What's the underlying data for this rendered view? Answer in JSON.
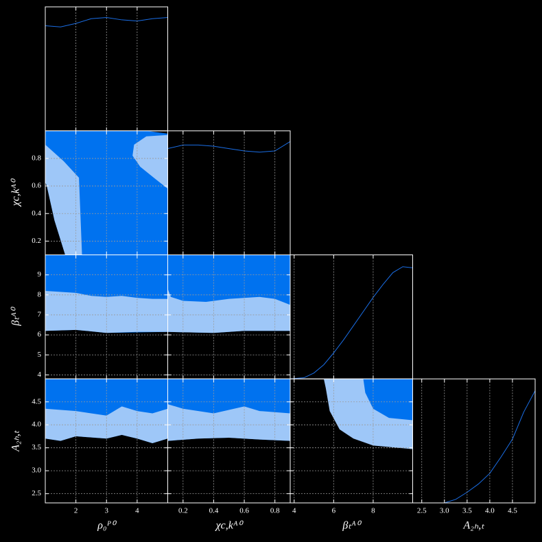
{
  "chart_data": [
    {
      "type": "line",
      "color": "#1a6ee6",
      "x": [
        1,
        1.5,
        2,
        2.5,
        3,
        3.5,
        4,
        4.5,
        5
      ],
      "values": [
        0.89,
        0.88,
        0.91,
        0.95,
        0.96,
        0.94,
        0.93,
        0.95,
        0.96
      ],
      "xlim": [
        1,
        5
      ],
      "ylim": [
        0,
        1.05
      ],
      "xticks": [
        2,
        3,
        4
      ],
      "grid": true
    },
    {
      "type": "contour",
      "xlim": [
        1,
        5
      ],
      "ylim": [
        0.1,
        1.0
      ],
      "xticks": [
        2,
        3,
        4
      ],
      "yticks": [
        0.2,
        0.4,
        0.6,
        0.8
      ],
      "ylabel": "χc,kᴬ⁰",
      "grid": true,
      "series": [
        {
          "color": "#0072ef",
          "x": [
            1,
            4.3,
            5,
            5,
            1.65,
            1.3,
            1.05,
            1
          ],
          "y": [
            1.0,
            1.0,
            0.98,
            0.1,
            0.1,
            0.35,
            0.6,
            0.63
          ]
        },
        {
          "color": "#9ec7f8",
          "x": [
            1,
            1.6,
            2.1,
            2.2,
            1.65,
            1.3,
            1.05,
            1
          ],
          "y": [
            0.9,
            0.78,
            0.66,
            0.1,
            0.1,
            0.35,
            0.6,
            0.63
          ]
        },
        {
          "color": "#9ec7f8",
          "x": [
            5,
            4.3,
            3.9,
            3.85,
            4.1,
            4.6,
            5
          ],
          "y": [
            0.97,
            0.96,
            0.9,
            0.82,
            0.74,
            0.65,
            0.58
          ]
        }
      ]
    },
    {
      "type": "line",
      "color": "#1a6ee6",
      "x": [
        0.1,
        0.2,
        0.3,
        0.4,
        0.5,
        0.6,
        0.7,
        0.8,
        0.9
      ],
      "values": [
        0.9,
        0.93,
        0.93,
        0.92,
        0.9,
        0.88,
        0.87,
        0.88,
        0.96
      ],
      "xlim": [
        0.1,
        0.9
      ],
      "ylim": [
        0,
        1.05
      ],
      "xticks": [
        0.2,
        0.4,
        0.6,
        0.8
      ],
      "grid": true
    },
    {
      "type": "contour",
      "xlim": [
        1,
        5
      ],
      "ylim": [
        3.8,
        10
      ],
      "xticks": [
        2,
        3,
        4
      ],
      "yticks": [
        4,
        5,
        6,
        7,
        8,
        9
      ],
      "ylabel": "βₜᴬ⁰",
      "grid": true,
      "series": [
        {
          "color": "#0072ef",
          "x": [
            1,
            5,
            5,
            3,
            2,
            1
          ],
          "y": [
            10,
            10,
            6.15,
            6.1,
            6.25,
            6.2
          ]
        },
        {
          "color": "#9ec7f8",
          "x": [
            1,
            2,
            2.5,
            3,
            3.5,
            4,
            4.5,
            5,
            5,
            4,
            3,
            2,
            1
          ],
          "y": [
            8.2,
            8.1,
            7.95,
            7.9,
            7.95,
            7.85,
            7.8,
            7.8,
            6.15,
            6.15,
            6.1,
            6.25,
            6.2
          ]
        }
      ]
    },
    {
      "type": "contour",
      "xlim": [
        0.1,
        0.9
      ],
      "ylim": [
        3.8,
        10
      ],
      "xticks": [
        0.2,
        0.4,
        0.6,
        0.8
      ],
      "yticks": [
        4,
        5,
        6,
        7,
        8,
        9
      ],
      "grid": true,
      "series": [
        {
          "color": "#0072ef",
          "x": [
            0.1,
            0.9,
            0.9,
            0.6,
            0.4,
            0.1
          ],
          "y": [
            10,
            10,
            6.2,
            6.2,
            6.1,
            6.15
          ]
        },
        {
          "color": "#9ec7f8",
          "x": [
            0.1,
            0.12,
            0.2,
            0.35,
            0.5,
            0.7,
            0.8,
            0.9,
            0.9,
            0.6,
            0.4,
            0.1
          ],
          "y": [
            8.3,
            7.9,
            7.7,
            7.65,
            7.8,
            7.9,
            7.8,
            7.5,
            6.2,
            6.2,
            6.1,
            6.15
          ]
        }
      ]
    },
    {
      "type": "line",
      "color": "#1a6ee6",
      "x": [
        3.8,
        4.5,
        5,
        5.5,
        6,
        6.5,
        7,
        7.5,
        8,
        8.5,
        9,
        9.5,
        10
      ],
      "values": [
        0,
        0.01,
        0.05,
        0.12,
        0.22,
        0.33,
        0.45,
        0.57,
        0.69,
        0.8,
        0.9,
        0.95,
        0.94
      ],
      "xlim": [
        3.8,
        10
      ],
      "ylim": [
        0,
        1.05
      ],
      "xticks": [
        4,
        6,
        8
      ],
      "yticks": [
        4,
        5,
        6,
        7,
        8,
        9
      ],
      "grid": true
    },
    {
      "type": "contour",
      "xlim": [
        1,
        5
      ],
      "ylim": [
        2.3,
        5.0
      ],
      "xticks": [
        2,
        3,
        4
      ],
      "yticks": [
        2.5,
        {
          "value": 3,
          "label": "3.0"
        },
        3.5,
        {
          "value": 4,
          "label": "4.0"
        },
        4.5
      ],
      "xlabel": "ρ₀ᴾ⁰",
      "ylabel": "A₂ₕ,ₜ",
      "grid": true,
      "series": [
        {
          "color": "#0072ef",
          "x": [
            1,
            5,
            5,
            4.5,
            4,
            3.5,
            3,
            2,
            1.5,
            1
          ],
          "y": [
            5.0,
            5.0,
            3.7,
            3.6,
            3.7,
            3.78,
            3.7,
            3.75,
            3.65,
            3.7
          ]
        },
        {
          "color": "#9ec7f8",
          "x": [
            1,
            2,
            3,
            3.5,
            4,
            4.5,
            5,
            5,
            4.5,
            4,
            3.5,
            3,
            2,
            1.5,
            1
          ],
          "y": [
            4.35,
            4.3,
            4.2,
            4.4,
            4.3,
            4.25,
            4.35,
            3.7,
            3.6,
            3.7,
            3.78,
            3.7,
            3.75,
            3.65,
            3.7
          ]
        }
      ]
    },
    {
      "type": "contour",
      "xlim": [
        0.1,
        0.9
      ],
      "ylim": [
        2.3,
        5.0
      ],
      "xticks": [
        0.2,
        0.4,
        0.6,
        0.8
      ],
      "yticks": [
        2.5,
        3,
        3.5,
        4,
        4.5
      ],
      "xlabel": "χc,kᴬ⁰",
      "grid": true,
      "series": [
        {
          "color": "#0072ef",
          "x": [
            0.1,
            0.9,
            0.9,
            0.7,
            0.5,
            0.3,
            0.1
          ],
          "y": [
            5.0,
            5.0,
            3.65,
            3.68,
            3.72,
            3.7,
            3.65
          ]
        },
        {
          "color": "#9ec7f8",
          "x": [
            0.1,
            0.2,
            0.4,
            0.6,
            0.7,
            0.9,
            0.9,
            0.7,
            0.5,
            0.3,
            0.1
          ],
          "y": [
            4.45,
            4.35,
            4.25,
            4.4,
            4.3,
            4.25,
            3.65,
            3.68,
            3.72,
            3.7,
            3.65
          ]
        }
      ]
    },
    {
      "type": "contour",
      "xlim": [
        3.8,
        10
      ],
      "ylim": [
        2.3,
        5.0
      ],
      "xticks": [
        4,
        6,
        8
      ],
      "yticks": [
        2.5,
        3,
        3.5,
        4,
        4.5
      ],
      "xlabel": "βₜᴬ⁰",
      "grid": true,
      "series": [
        {
          "color": "#9ec7f8",
          "x": [
            5.5,
            10,
            10,
            8,
            7,
            6.3,
            5.8,
            5.6
          ],
          "y": [
            5.0,
            5.0,
            3.47,
            3.55,
            3.7,
            3.9,
            4.3,
            4.8
          ]
        },
        {
          "color": "#0072ef",
          "x": [
            7.5,
            10,
            10,
            8.8,
            8,
            7.6
          ],
          "y": [
            5.0,
            5.0,
            4.1,
            4.15,
            4.35,
            4.7
          ]
        }
      ]
    },
    {
      "type": "line",
      "color": "#1a6ee6",
      "x": [
        2.3,
        2.5,
        3.0,
        3.25,
        3.5,
        3.75,
        4.0,
        4.25,
        4.5,
        4.75,
        5.0
      ],
      "values": [
        0,
        0,
        0,
        0.03,
        0.09,
        0.16,
        0.25,
        0.39,
        0.54,
        0.77,
        0.95
      ],
      "xlim": [
        2.3,
        5.0
      ],
      "ylim": [
        0,
        1.05
      ],
      "xticks": [
        2.5,
        {
          "value": 3,
          "label": "3.0"
        },
        3.5,
        {
          "value": 4,
          "label": "4.0"
        },
        4.5
      ],
      "xlabel": "A₂ₕ,ₜ",
      "grid": true
    }
  ]
}
